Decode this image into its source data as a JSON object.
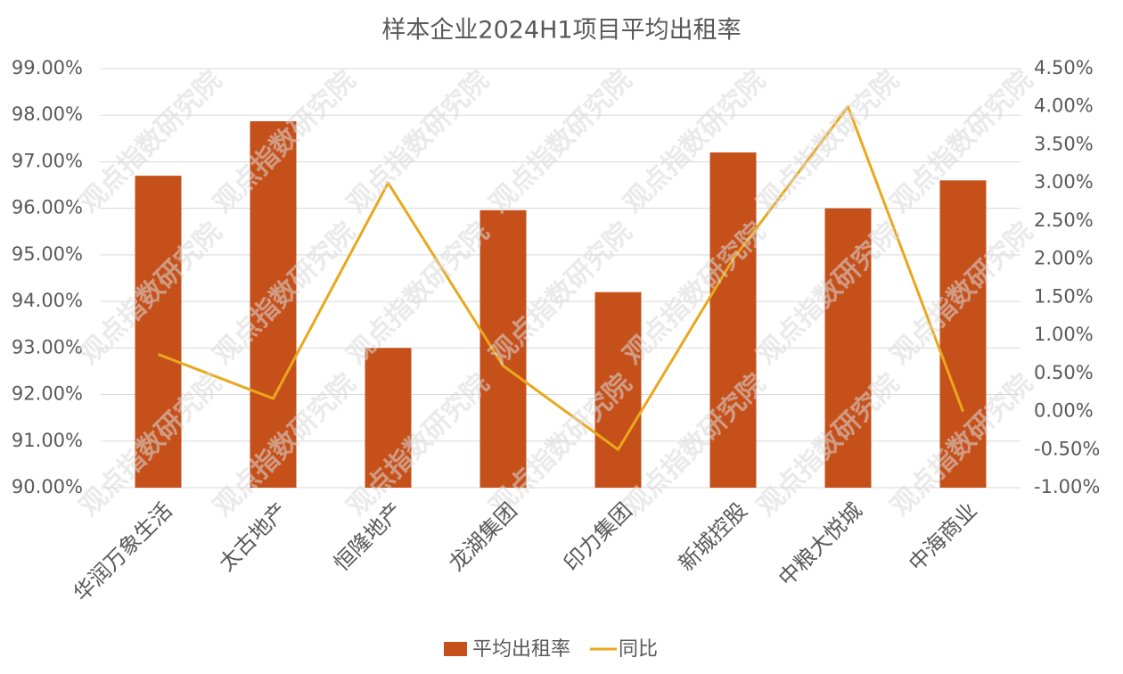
{
  "chart_data": {
    "type": "bar_line",
    "title": "样本企业2024H1项目平均出租率",
    "watermark": "观点指数研究院",
    "categories": [
      "华润万象生活",
      "太古地产",
      "恒隆地产",
      "龙湖集团",
      "印力集团",
      "新城控股",
      "中粮大悦城",
      "中海商业"
    ],
    "series": [
      {
        "name": "平均出租率",
        "type": "bar",
        "color": "#c5501a",
        "values": [
          96.7,
          97.87,
          93.0,
          95.96,
          94.2,
          97.2,
          96.0,
          96.6
        ]
      },
      {
        "name": "同比",
        "type": "line",
        "axis": "y2",
        "color": "#e9a81c",
        "values": [
          0.75,
          0.17,
          3.0,
          0.6,
          -0.5,
          2.0,
          4.0,
          0.0
        ]
      }
    ],
    "ylim": [
      90,
      99
    ],
    "yticks": [
      {
        "value": 90,
        "label": "90.00%"
      },
      {
        "value": 91,
        "label": "91.00%"
      },
      {
        "value": 92,
        "label": "92.00%"
      },
      {
        "value": 93,
        "label": "93.00%"
      },
      {
        "value": 94,
        "label": "94.00%"
      },
      {
        "value": 95,
        "label": "95.00%"
      },
      {
        "value": 96,
        "label": "96.00%"
      },
      {
        "value": 97,
        "label": "97.00%"
      },
      {
        "value": 98,
        "label": "98.00%"
      },
      {
        "value": 99,
        "label": "99.00%"
      }
    ],
    "y2lim": [
      -1,
      4.5
    ],
    "y2ticks": [
      {
        "value": -1,
        "label": "-1.00%"
      },
      {
        "value": -0.5,
        "label": "-0.50%"
      },
      {
        "value": 0,
        "label": "0.00%"
      },
      {
        "value": 0.5,
        "label": "0.50%"
      },
      {
        "value": 1,
        "label": "1.00%"
      },
      {
        "value": 1.5,
        "label": "1.50%"
      },
      {
        "value": 2,
        "label": "2.00%"
      },
      {
        "value": 2.5,
        "label": "2.50%"
      },
      {
        "value": 3,
        "label": "3.00%"
      },
      {
        "value": 3.5,
        "label": "3.50%"
      },
      {
        "value": 4,
        "label": "4.00%"
      },
      {
        "value": 4.5,
        "label": "4.50%"
      }
    ],
    "grid": true,
    "legend": "bottom"
  }
}
